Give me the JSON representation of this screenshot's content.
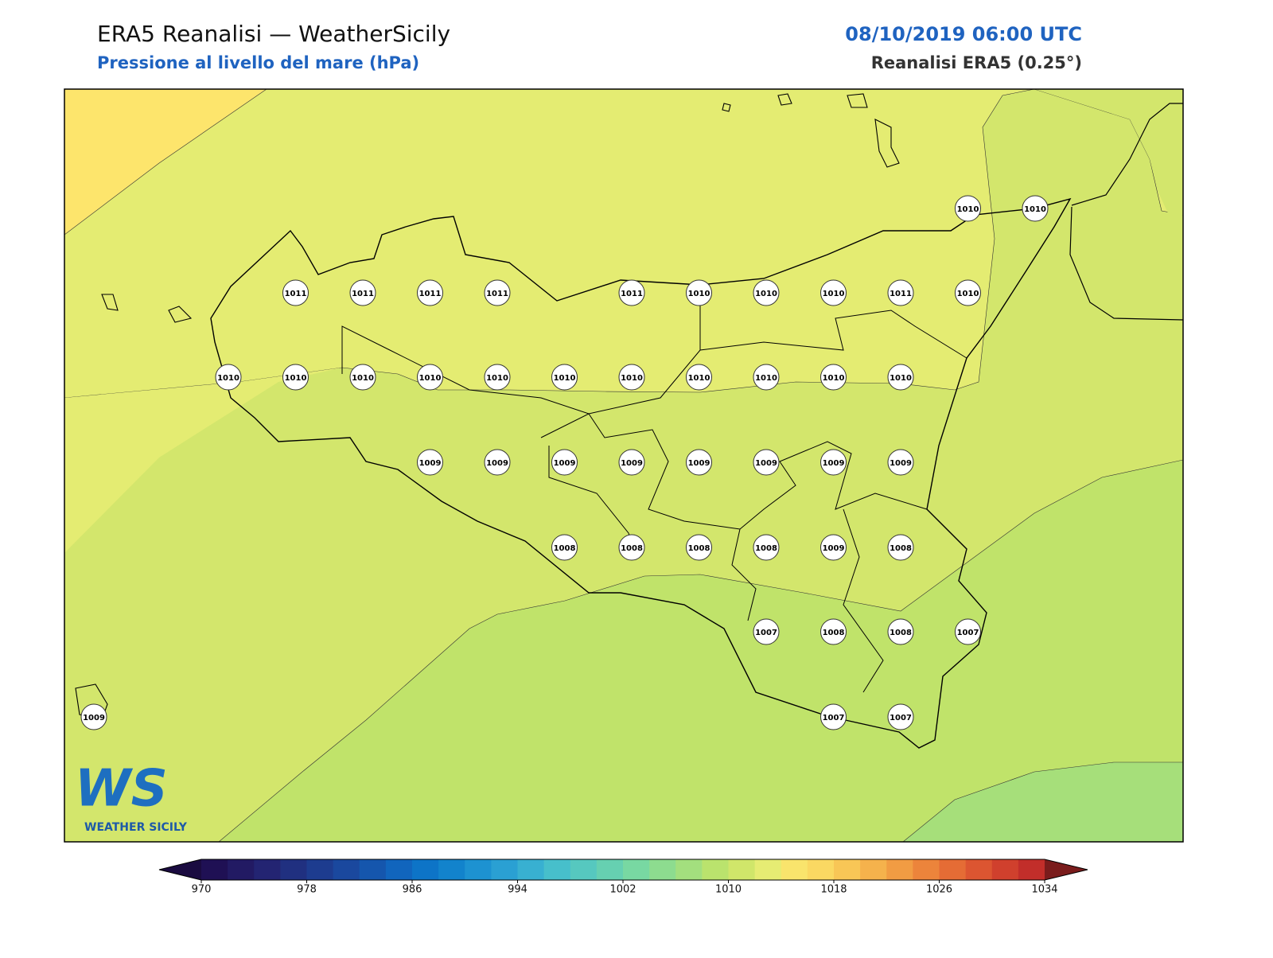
{
  "header": {
    "title": "ERA5 Reanalisi — WeatherSicily",
    "subtitle": "Pressione al livello del mare (hPa)",
    "date": "08/10/2019 06:00 UTC",
    "source": "Reanalisi ERA5 (0.25°)"
  },
  "stations": [
    1010,
    1010,
    1011,
    1011,
    1011,
    1011,
    1011,
    1010,
    1010,
    1010,
    1011,
    1010,
    1010,
    1010,
    1010,
    1010,
    1010,
    1010,
    1010,
    1010,
    1010,
    1010,
    1010,
    1009,
    1009,
    1009,
    1009,
    1009,
    1009,
    1009,
    1009,
    1008,
    1008,
    1008,
    1008,
    1009,
    1008,
    1007,
    1008,
    1008,
    1007,
    1009,
    1007,
    1007
  ],
  "colorbar": {
    "ticks": [
      970,
      978,
      986,
      994,
      1002,
      1010,
      1018,
      1026,
      1034
    ],
    "colors": [
      "#1f1054",
      "#221a63",
      "#232472",
      "#203080",
      "#1d3c8f",
      "#1a489e",
      "#1556ad",
      "#1165bd",
      "#0d74c7",
      "#1283cc",
      "#1d92d1",
      "#2aa0d3",
      "#38b0d1",
      "#47bfcb",
      "#56c8bf",
      "#66d0b1",
      "#78d8a2",
      "#8ddc8f",
      "#a3df7e",
      "#bae36d",
      "#d0e66a",
      "#e6ec73",
      "#f9e46c",
      "#fad862",
      "#f8c656",
      "#f5b24c",
      "#f19c43",
      "#ec843b",
      "#e56c35",
      "#dc5531",
      "#d0402d",
      "#c22e2a"
    ],
    "under": "#1a0b40",
    "over": "#7a1c1c"
  },
  "logo": {
    "mark": "WS",
    "text": "WEATHER SICILY"
  }
}
